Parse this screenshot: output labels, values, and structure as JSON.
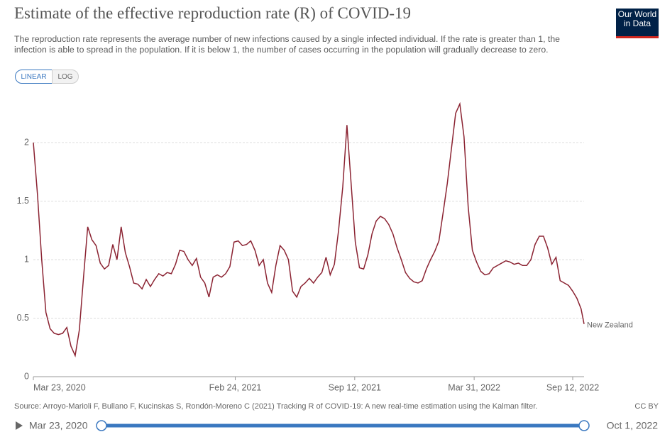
{
  "header": {
    "title": "Estimate of the effective reproduction rate (R) of COVID-19",
    "subtitle": [
      "The reproduction rate represents the average number of new infections caused by a single infected individual. If the rate is greater than 1, the",
      "infection is able to spread in the population. If it is below 1, the number of cases occurring in the population will gradually decrease to zero."
    ],
    "logo": [
      "Our World",
      "in Data"
    ]
  },
  "controls": {
    "linear": "LINEAR",
    "log": "LOG"
  },
  "chart_data": {
    "type": "line",
    "x": [
      "2020-03-23",
      "2020-03-30",
      "2020-04-06",
      "2020-04-13",
      "2020-04-20",
      "2020-04-27",
      "2020-05-04",
      "2020-05-11",
      "2020-05-18",
      "2020-05-25",
      "2020-06-01",
      "2020-06-08",
      "2020-06-15",
      "2020-06-22",
      "2020-06-29",
      "2020-07-06",
      "2020-07-13",
      "2020-07-20",
      "2020-07-27",
      "2020-08-03",
      "2020-08-10",
      "2020-08-17",
      "2020-08-24",
      "2020-08-31",
      "2020-09-07",
      "2020-09-14",
      "2020-09-21",
      "2020-09-28",
      "2020-10-05",
      "2020-10-12",
      "2020-10-19",
      "2020-10-26",
      "2020-11-02",
      "2020-11-09",
      "2020-11-16",
      "2020-11-23",
      "2020-11-30",
      "2020-12-07",
      "2020-12-14",
      "2020-12-21",
      "2020-12-28",
      "2021-01-04",
      "2021-01-11",
      "2021-01-18",
      "2021-01-25",
      "2021-02-01",
      "2021-02-08",
      "2021-02-15",
      "2021-02-22",
      "2021-03-01",
      "2021-03-08",
      "2021-03-15",
      "2021-03-22",
      "2021-03-29",
      "2021-04-05",
      "2021-04-12",
      "2021-04-19",
      "2021-04-26",
      "2021-05-03",
      "2021-05-10",
      "2021-05-17",
      "2021-05-24",
      "2021-05-31",
      "2021-06-07",
      "2021-06-14",
      "2021-06-21",
      "2021-06-28",
      "2021-07-05",
      "2021-07-12",
      "2021-07-19",
      "2021-07-26",
      "2021-08-02",
      "2021-08-09",
      "2021-08-16",
      "2021-08-23",
      "2021-08-30",
      "2021-09-06",
      "2021-09-13",
      "2021-09-20",
      "2021-09-27",
      "2021-10-04",
      "2021-10-11",
      "2021-10-18",
      "2021-10-25",
      "2021-11-01",
      "2021-11-08",
      "2021-11-15",
      "2021-11-22",
      "2021-11-29",
      "2021-12-06",
      "2021-12-13",
      "2021-12-20",
      "2021-12-27",
      "2022-01-03",
      "2022-01-10",
      "2022-01-17",
      "2022-01-24",
      "2022-01-31",
      "2022-02-07",
      "2022-02-14",
      "2022-02-21",
      "2022-02-28",
      "2022-03-07",
      "2022-03-14",
      "2022-03-21",
      "2022-03-28",
      "2022-04-04",
      "2022-04-11",
      "2022-04-18",
      "2022-04-25",
      "2022-05-02",
      "2022-05-09",
      "2022-05-16",
      "2022-05-23",
      "2022-05-30",
      "2022-06-06",
      "2022-06-13",
      "2022-06-20",
      "2022-06-27",
      "2022-07-04",
      "2022-07-11",
      "2022-07-18",
      "2022-07-25",
      "2022-08-01",
      "2022-08-08",
      "2022-08-15",
      "2022-08-22",
      "2022-08-29",
      "2022-09-05",
      "2022-09-12",
      "2022-09-19",
      "2022-09-26",
      "2022-10-01"
    ],
    "series": [
      {
        "name": "New Zealand",
        "color": "#8b2332",
        "values": [
          2.0,
          1.55,
          1.0,
          0.55,
          0.41,
          0.37,
          0.36,
          0.37,
          0.42,
          0.26,
          0.18,
          0.4,
          0.85,
          1.28,
          1.17,
          1.12,
          0.97,
          0.92,
          0.95,
          1.13,
          1.0,
          1.28,
          1.06,
          0.94,
          0.8,
          0.79,
          0.75,
          0.83,
          0.77,
          0.83,
          0.88,
          0.86,
          0.89,
          0.88,
          0.96,
          1.08,
          1.07,
          1.0,
          0.95,
          1.01,
          0.85,
          0.8,
          0.68,
          0.85,
          0.87,
          0.85,
          0.88,
          0.94,
          1.15,
          1.16,
          1.12,
          1.13,
          1.16,
          1.08,
          0.95,
          1.0,
          0.8,
          0.72,
          0.95,
          1.12,
          1.08,
          1.0,
          0.73,
          0.68,
          0.77,
          0.8,
          0.84,
          0.8,
          0.85,
          0.89,
          1.02,
          0.87,
          0.96,
          1.25,
          1.62,
          2.15,
          1.65,
          1.15,
          0.93,
          0.92,
          1.04,
          1.22,
          1.33,
          1.37,
          1.35,
          1.3,
          1.22,
          1.1,
          1.0,
          0.89,
          0.84,
          0.81,
          0.8,
          0.82,
          0.92,
          1.0,
          1.07,
          1.16,
          1.4,
          1.65,
          1.95,
          2.25,
          2.33,
          2.05,
          1.45,
          1.08,
          0.98,
          0.9,
          0.87,
          0.88,
          0.93,
          0.95,
          0.97,
          0.99,
          0.98,
          0.96,
          0.97,
          0.95,
          0.95,
          1.0,
          1.13,
          1.2,
          1.2,
          1.1,
          0.96,
          1.02,
          0.82,
          0.8,
          0.78,
          0.73,
          0.67,
          0.58,
          0.45
        ]
      }
    ],
    "xlim": [
      "2020-03-23",
      "2022-10-01"
    ],
    "xticks": [
      {
        "value": "2020-03-23",
        "label": "Mar 23, 2020"
      },
      {
        "value": "2021-02-24",
        "label": "Feb 24, 2021"
      },
      {
        "value": "2021-09-12",
        "label": "Sep 12, 2021"
      },
      {
        "value": "2022-03-31",
        "label": "Mar 31, 2022"
      },
      {
        "value": "2022-09-12",
        "label": "Sep 12, 2022"
      }
    ],
    "ylim": [
      0,
      2.4
    ],
    "yticks": [
      0,
      0.5,
      1,
      1.5,
      2
    ],
    "grid": true,
    "log_scale": false
  },
  "footer": {
    "source": "Source: Arroyo-Marioli F, Bullano F, Kucinskas S, Rondón-Moreno C (2021) Tracking R of COVID-19: A new real-time estimation using the Kalman filter.",
    "license": "CC BY"
  },
  "timeline": {
    "start": "Mar 23, 2020",
    "end": "Oct 1, 2022"
  }
}
